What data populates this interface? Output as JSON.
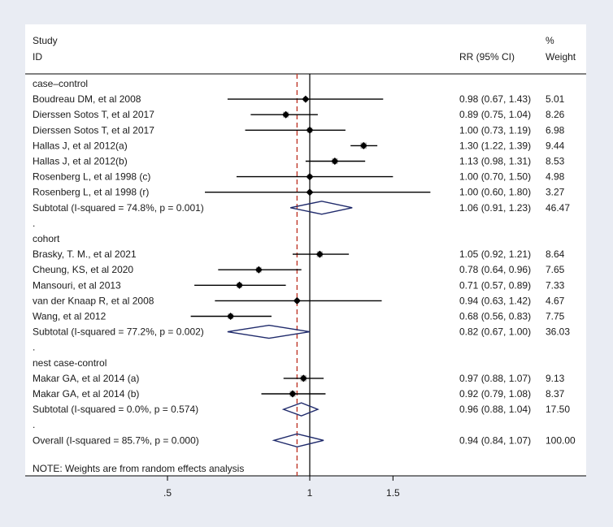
{
  "chart_data": {
    "type": "forest",
    "headers": {
      "study_line1": "Study",
      "study_line2": "ID",
      "rr": "RR (95% CI)",
      "weight_line1": "%",
      "weight_line2": "Weight"
    },
    "x_axis": {
      "scale": "log",
      "ticks": [
        0.5,
        1,
        1.5
      ],
      "tick_labels": [
        ".5",
        "1",
        "1.5"
      ],
      "null_value": 1,
      "overall_ref": 0.94
    },
    "rows": [
      {
        "kind": "group",
        "label": "case–control"
      },
      {
        "kind": "study",
        "label": "Boudreau DM, et al 2008",
        "rr": 0.98,
        "lo": 0.67,
        "hi": 1.43,
        "ci_text": "0.98 (0.67, 1.43)",
        "weight": "5.01"
      },
      {
        "kind": "study",
        "label": "Dierssen Sotos T, et al 2017",
        "rr": 0.89,
        "lo": 0.75,
        "hi": 1.04,
        "ci_text": "0.89 (0.75, 1.04)",
        "weight": "8.26"
      },
      {
        "kind": "study",
        "label": "Dierssen Sotos T, et al 2017",
        "rr": 1.0,
        "lo": 0.73,
        "hi": 1.19,
        "ci_text": "1.00 (0.73, 1.19)",
        "weight": "6.98"
      },
      {
        "kind": "study",
        "label": "Hallas J, et al 2012(a)",
        "rr": 1.3,
        "lo": 1.22,
        "hi": 1.39,
        "ci_text": "1.30 (1.22, 1.39)",
        "weight": "9.44"
      },
      {
        "kind": "study",
        "label": "Hallas J, et al 2012(b)",
        "rr": 1.13,
        "lo": 0.98,
        "hi": 1.31,
        "ci_text": "1.13 (0.98, 1.31)",
        "weight": "8.53"
      },
      {
        "kind": "study",
        "label": "Rosenberg L, et al 1998 (c)",
        "rr": 1.0,
        "lo": 0.7,
        "hi": 1.5,
        "ci_text": "1.00 (0.70, 1.50)",
        "weight": "4.98"
      },
      {
        "kind": "study",
        "label": "Rosenberg L, et al 1998 (r)",
        "rr": 1.0,
        "lo": 0.6,
        "hi": 1.8,
        "ci_text": "1.00 (0.60, 1.80)",
        "weight": "3.27"
      },
      {
        "kind": "subtotal",
        "label": "Subtotal  (I-squared = 74.8%, p = 0.001)",
        "rr": 1.06,
        "lo": 0.91,
        "hi": 1.23,
        "ci_text": "1.06 (0.91, 1.23)",
        "weight": "46.47"
      },
      {
        "kind": "dot",
        "label": "."
      },
      {
        "kind": "group",
        "label": "cohort"
      },
      {
        "kind": "study",
        "label": "Brasky, T. M., et al 2021",
        "rr": 1.05,
        "lo": 0.92,
        "hi": 1.21,
        "ci_text": "1.05 (0.92, 1.21)",
        "weight": "8.64"
      },
      {
        "kind": "study",
        "label": "Cheung, KS, et al 2020",
        "rr": 0.78,
        "lo": 0.64,
        "hi": 0.96,
        "ci_text": "0.78 (0.64, 0.96)",
        "weight": "7.65"
      },
      {
        "kind": "study",
        "label": "Mansouri, et al 2013",
        "rr": 0.71,
        "lo": 0.57,
        "hi": 0.89,
        "ci_text": "0.71 (0.57, 0.89)",
        "weight": "7.33"
      },
      {
        "kind": "study",
        "label": "van der Knaap R, et al 2008",
        "rr": 0.94,
        "lo": 0.63,
        "hi": 1.42,
        "ci_text": "0.94 (0.63, 1.42)",
        "weight": "4.67"
      },
      {
        "kind": "study",
        "label": "Wang, et al 2012",
        "rr": 0.68,
        "lo": 0.56,
        "hi": 0.83,
        "ci_text": "0.68 (0.56, 0.83)",
        "weight": "7.75"
      },
      {
        "kind": "subtotal",
        "label": "Subtotal  (I-squared = 77.2%, p = 0.002)",
        "rr": 0.82,
        "lo": 0.67,
        "hi": 1.0,
        "ci_text": "0.82 (0.67, 1.00)",
        "weight": "36.03"
      },
      {
        "kind": "dot",
        "label": "."
      },
      {
        "kind": "group",
        "label": "nest case-control"
      },
      {
        "kind": "study",
        "label": "Makar GA, et al 2014 (a)",
        "rr": 0.97,
        "lo": 0.88,
        "hi": 1.07,
        "ci_text": "0.97 (0.88, 1.07)",
        "weight": "9.13"
      },
      {
        "kind": "study",
        "label": "Makar GA, et al 2014 (b)",
        "rr": 0.92,
        "lo": 0.79,
        "hi": 1.08,
        "ci_text": "0.92 (0.79, 1.08)",
        "weight": "8.37"
      },
      {
        "kind": "subtotal",
        "label": "Subtotal  (I-squared = 0.0%, p = 0.574)",
        "rr": 0.96,
        "lo": 0.88,
        "hi": 1.04,
        "ci_text": "0.96 (0.88, 1.04)",
        "weight": "17.50"
      },
      {
        "kind": "dot",
        "label": "."
      },
      {
        "kind": "overall",
        "label": "Overall  (I-squared = 85.7%, p = 0.000)",
        "rr": 0.94,
        "lo": 0.84,
        "hi": 1.07,
        "ci_text": "0.94 (0.84, 1.07)",
        "weight": "100.00"
      }
    ],
    "note": "NOTE: Weights are from random effects analysis",
    "colors": {
      "background": "#e9ecf3",
      "panel": "#ffffff",
      "line": "#000000",
      "diamond": "#1f2a6b",
      "box": "#b3b3b3",
      "overall_ref": "#c0392b"
    }
  }
}
